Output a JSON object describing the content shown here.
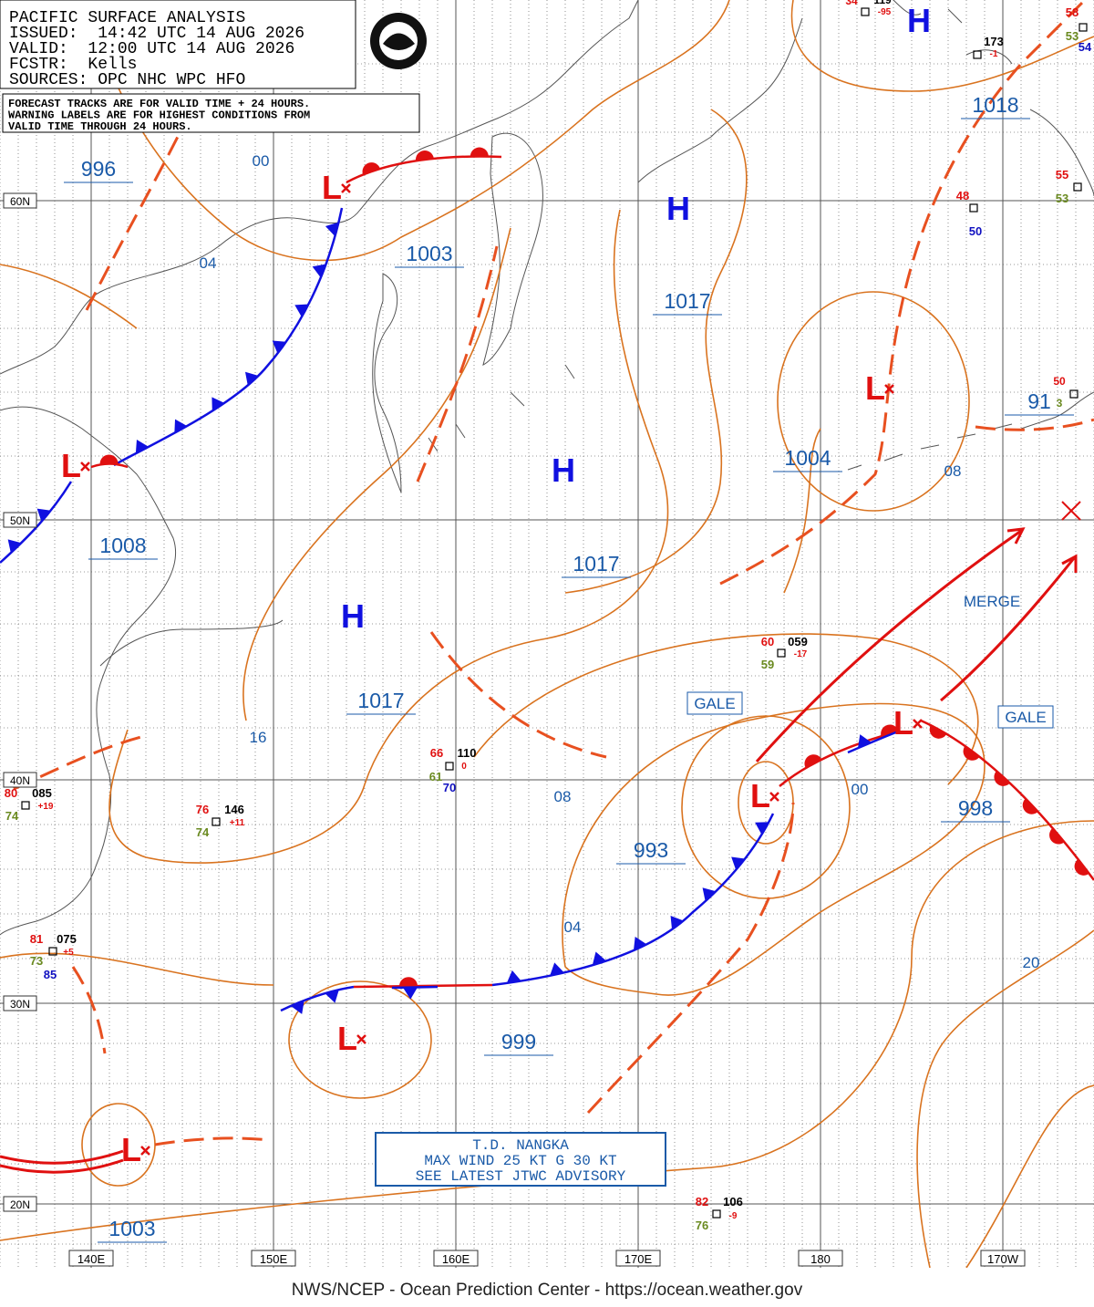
{
  "header": {
    "lines": [
      "PACIFIC SURFACE ANALYSIS",
      "ISSUED:  14:42 UTC 14 AUG 2026",
      "VALID:  12:00 UTC 14 AUG 2026",
      "FCSTR:  Kells",
      "SOURCES: OPC NHC WPC HFO"
    ],
    "note": [
      "FORECAST TRACKS ARE FOR VALID TIME + 24 HOURS.",
      "WARNING LABELS ARE FOR HIGHEST CONDITIONS FROM",
      "VALID TIME THROUGH 24 HOURS."
    ]
  },
  "grid": {
    "latitudes": [
      "60N",
      "50N",
      "40N",
      "30N",
      "20N"
    ],
    "longitudes": [
      "140E",
      "150E",
      "160E",
      "170E",
      "180",
      "170W"
    ]
  },
  "pressure_labels": [
    "996",
    "1003",
    "1017",
    "1008",
    "1004",
    "1018",
    "1017",
    "1017",
    "993",
    "998",
    "999",
    "1003",
    "91"
  ],
  "isobar_labels": [
    "00",
    "04",
    "16",
    "08",
    "04",
    "08",
    "00",
    "20"
  ],
  "highs": [
    "H",
    "H",
    "H",
    "H"
  ],
  "lows": [
    "L",
    "L",
    "L",
    "L",
    "L",
    "L",
    "L"
  ],
  "warnings": [
    "GALE",
    "GALE",
    "MERGE"
  ],
  "stations": [
    [
      "34",
      "119",
      "-95"
    ],
    [
      "173",
      "-1"
    ],
    [
      "58",
      "53",
      "54"
    ],
    [
      "55",
      "53"
    ],
    [
      "48",
      "50"
    ],
    [
      "50",
      "3"
    ],
    [
      "60",
      "059",
      "-17",
      "59"
    ],
    [
      "66",
      "110",
      "0",
      "61",
      "70"
    ],
    [
      "80",
      "085",
      "+19",
      "74"
    ],
    [
      "76",
      "146",
      "+11",
      "74"
    ],
    [
      "81",
      "075",
      "+5",
      "73",
      "85"
    ],
    [
      "82",
      "106",
      "-9",
      "76"
    ]
  ],
  "advisory": [
    "T.D. NANGKA",
    "MAX WIND 25 KT G 30 KT",
    "SEE LATEST JTWC ADVISORY"
  ],
  "footer": "NWS/NCEP - Ocean Prediction Center - https://ocean.weather.gov"
}
